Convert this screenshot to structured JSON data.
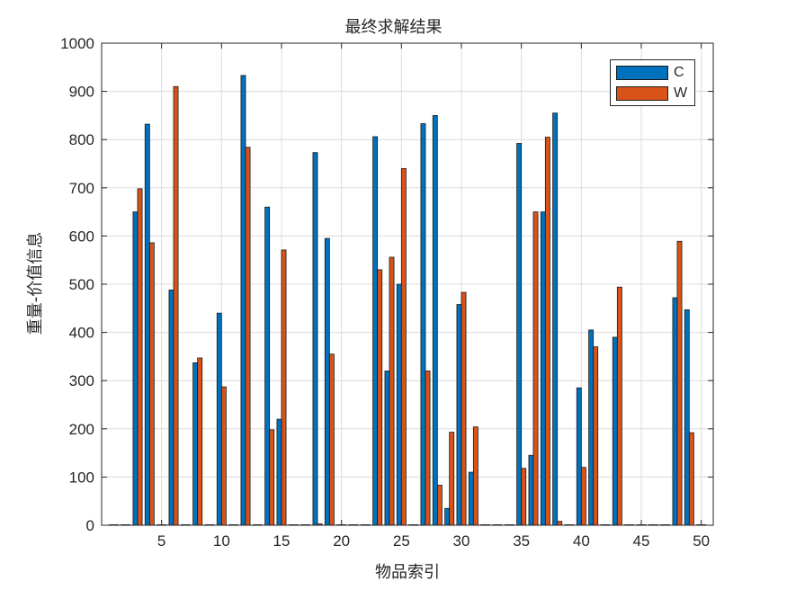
{
  "chart_data": {
    "type": "bar",
    "title": "最终求解结果",
    "xlabel": "物品索引",
    "ylabel": "重量-价值信息",
    "xlim": [
      0,
      51
    ],
    "ylim": [
      0,
      1000
    ],
    "xticks": [
      5,
      10,
      15,
      20,
      25,
      30,
      35,
      40,
      45,
      50
    ],
    "yticks": [
      0,
      100,
      200,
      300,
      400,
      500,
      600,
      700,
      800,
      900,
      1000
    ],
    "grid": true,
    "legend_position": "top-right",
    "x": [
      1,
      2,
      3,
      4,
      5,
      6,
      7,
      8,
      9,
      10,
      11,
      12,
      13,
      14,
      15,
      16,
      17,
      18,
      19,
      20,
      21,
      22,
      23,
      24,
      25,
      26,
      27,
      28,
      29,
      30,
      31,
      32,
      33,
      34,
      35,
      36,
      37,
      38,
      39,
      40,
      41,
      42,
      43,
      44,
      45,
      46,
      47,
      48,
      49,
      50
    ],
    "series": [
      {
        "name": "C",
        "color": "#0072bd",
        "values": [
          0,
          0,
          650,
          832,
          0,
          488,
          0,
          337,
          0,
          440,
          0,
          933,
          0,
          660,
          220,
          0,
          0,
          773,
          595,
          0,
          0,
          0,
          806,
          320,
          500,
          0,
          833,
          850,
          35,
          458,
          110,
          0,
          0,
          0,
          792,
          145,
          650,
          855,
          0,
          285,
          405,
          0,
          390,
          0,
          0,
          0,
          0,
          472,
          447,
          0
        ]
      },
      {
        "name": "W",
        "color": "#d95319",
        "values": [
          0,
          0,
          698,
          586,
          0,
          910,
          0,
          347,
          0,
          287,
          0,
          784,
          0,
          198,
          571,
          0,
          0,
          3,
          355,
          0,
          0,
          0,
          530,
          556,
          740,
          0,
          320,
          83,
          193,
          483,
          204,
          0,
          0,
          0,
          118,
          650,
          805,
          8,
          0,
          120,
          370,
          0,
          494,
          0,
          0,
          0,
          0,
          589,
          192,
          0
        ]
      }
    ]
  }
}
